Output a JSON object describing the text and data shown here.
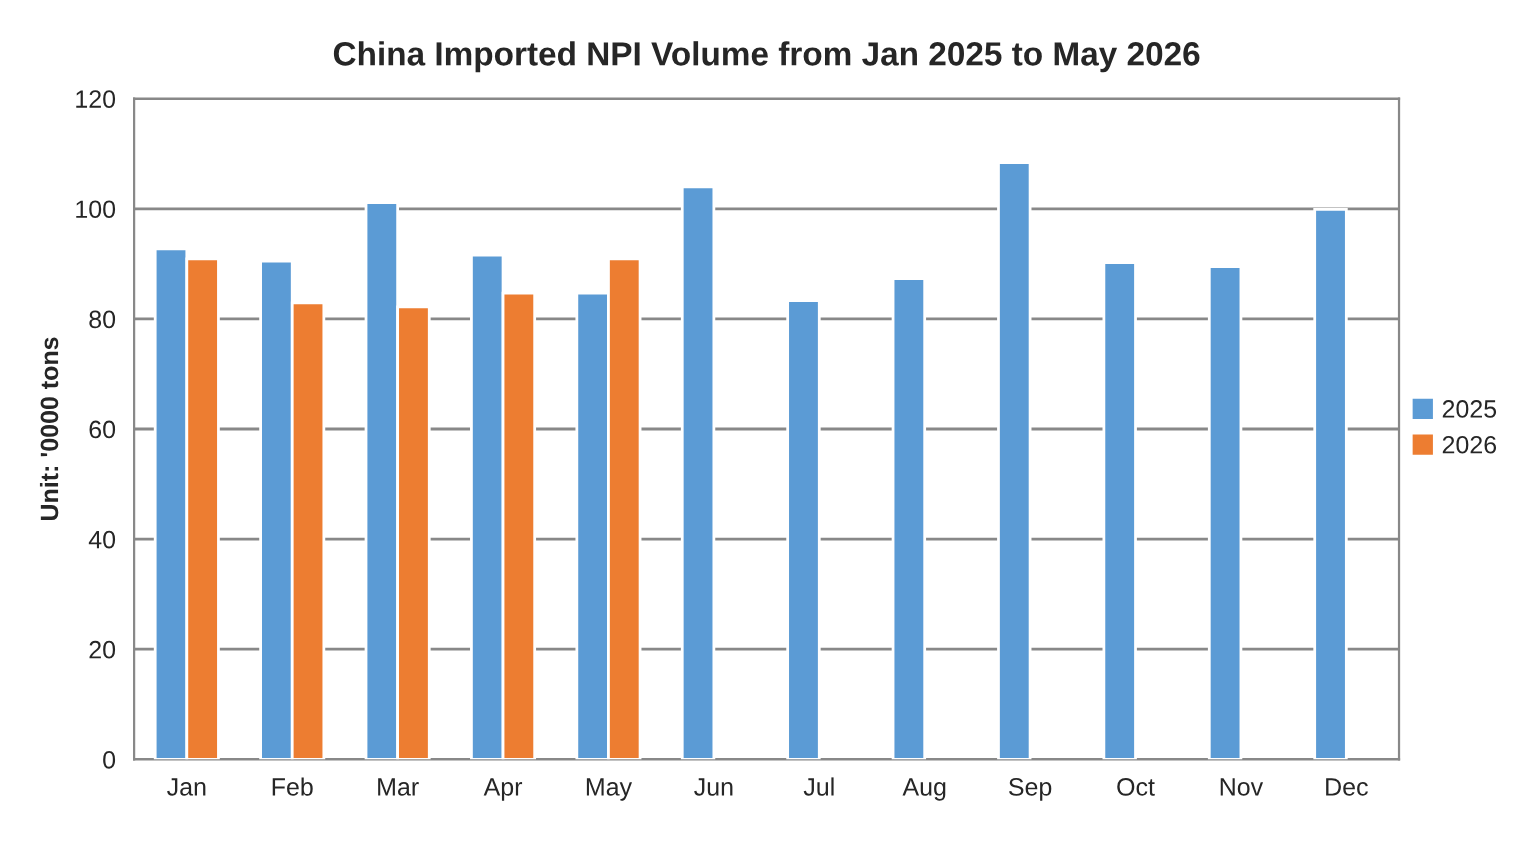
{
  "chart_data": {
    "type": "bar",
    "title": "China Imported NPI Volume from Jan 2025 to May 2026",
    "ylabel": "Unit: '0000 tons",
    "categories": [
      "Jan",
      "Feb",
      "Mar",
      "Apr",
      "May",
      "Jun",
      "Jul",
      "Aug",
      "Sep",
      "Oct",
      "Nov",
      "Dec"
    ],
    "series": [
      {
        "name": "2025",
        "color": "#5b9bd5",
        "values": [
          92.7,
          90.5,
          101.1,
          91.6,
          84.7,
          104.0,
          83.3,
          87.3,
          108.4,
          90.2,
          89.5,
          99.9
        ]
      },
      {
        "name": "2026",
        "color": "#ed7d31",
        "values": [
          90.9,
          82.9,
          82.2,
          84.7,
          90.9,
          null,
          null,
          null,
          null,
          null,
          null,
          null
        ]
      }
    ],
    "ylim": [
      0,
      120
    ],
    "yticks": [
      0,
      20,
      40,
      60,
      80,
      100,
      120
    ],
    "grid": "y",
    "legend": "right"
  }
}
